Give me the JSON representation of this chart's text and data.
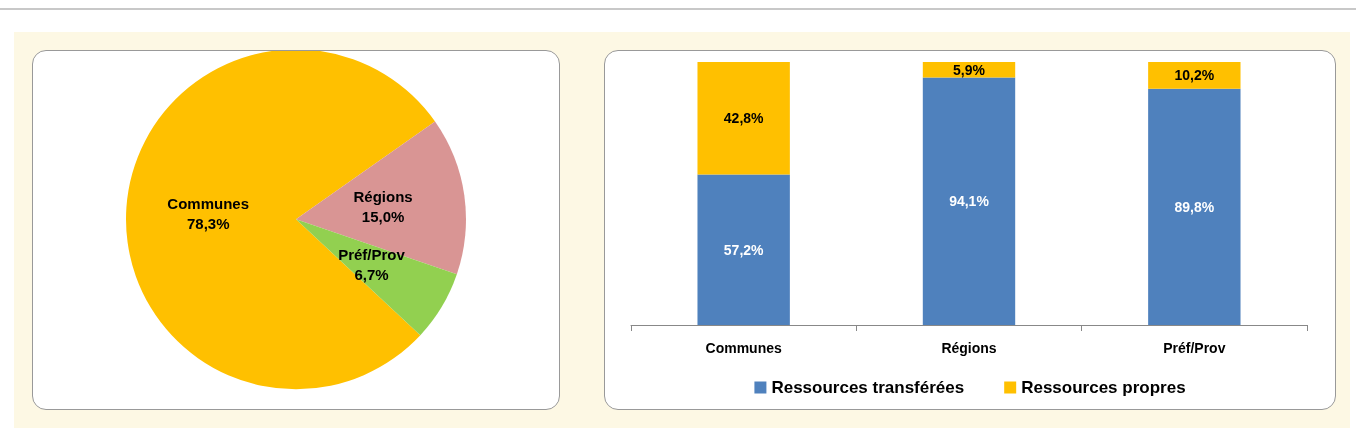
{
  "chart_data": [
    {
      "type": "pie",
      "categories": [
        "Communes",
        "Régions",
        "Préf/Prov"
      ],
      "values": [
        78.3,
        15.0,
        6.7
      ],
      "value_labels": [
        "78,3%",
        "15,0%",
        "6,7%"
      ],
      "colors": [
        "#ffc000",
        "#d99594",
        "#92d050"
      ],
      "legend": false
    },
    {
      "type": "bar",
      "stacked": true,
      "categories": [
        "Communes",
        "Régions",
        "Préf/Prov"
      ],
      "series": [
        {
          "name": "Ressources transférées",
          "color": "#4f81bd",
          "values": [
            57.2,
            94.1,
            89.8
          ],
          "value_labels": [
            "57,2%",
            "94,1%",
            "89,8%"
          ]
        },
        {
          "name": "Ressources propres",
          "color": "#ffc000",
          "values": [
            42.8,
            5.9,
            10.2
          ],
          "value_labels": [
            "42,8%",
            "5,9%",
            "10,2%"
          ]
        }
      ],
      "legend": "bottom"
    }
  ]
}
